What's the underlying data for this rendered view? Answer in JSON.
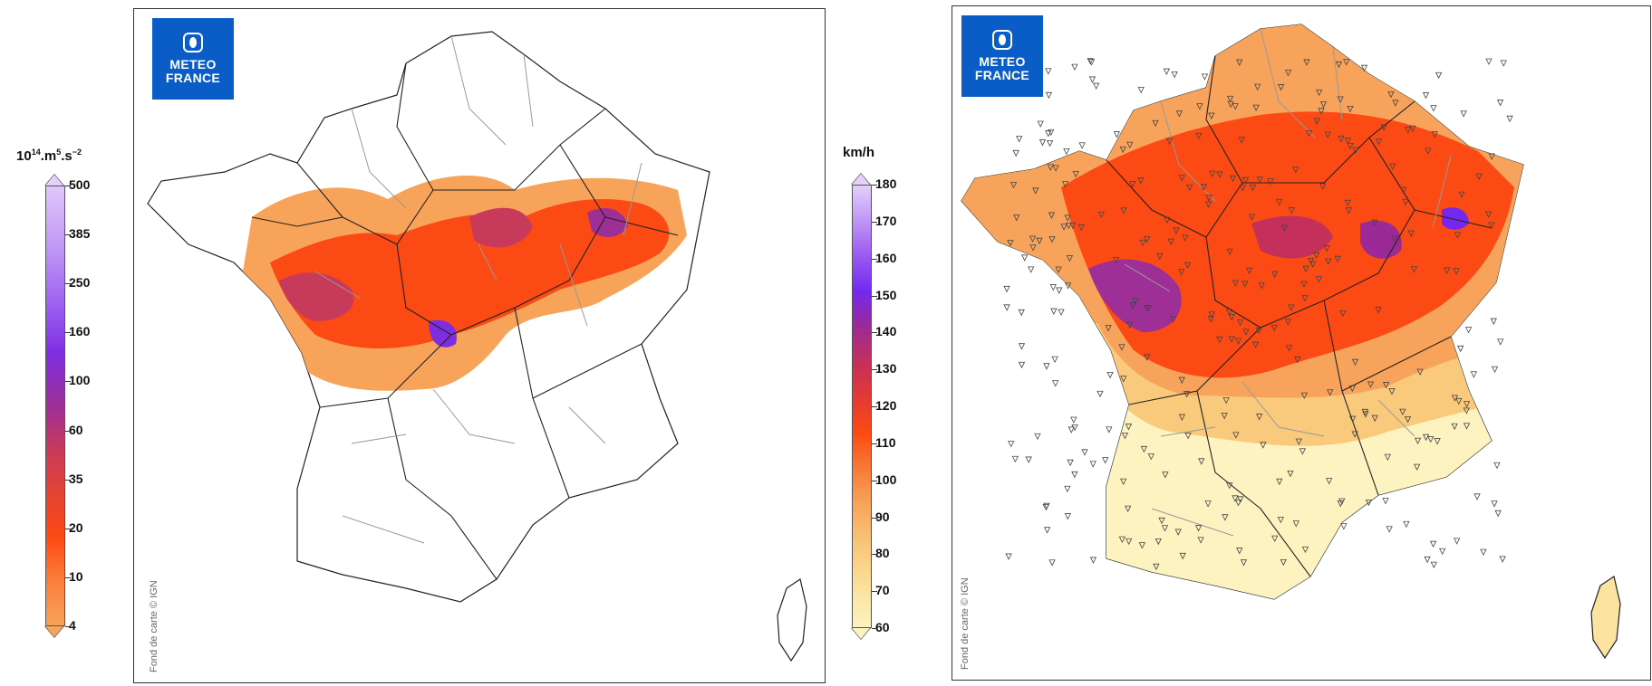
{
  "left_panel": {
    "logo_line1": "METEO",
    "logo_line2": "FRANCE",
    "credit": "Fond de carte © IGN",
    "unit_prefix": "10",
    "unit_exp1": "14",
    "unit_mid": ".m",
    "unit_exp2": "5",
    "unit_mid2": ".s",
    "unit_exp3": "−2",
    "ticks": [
      "500",
      "385",
      "250",
      "160",
      "100",
      "60",
      "35",
      "20",
      "10",
      "4"
    ]
  },
  "right_panel": {
    "logo_line1": "METEO",
    "logo_line2": "FRANCE",
    "credit": "Fond de carte © IGN",
    "unit": "km/h",
    "ticks": [
      "180",
      "170",
      "160",
      "150",
      "140",
      "130",
      "120",
      "110",
      "100",
      "90",
      "80",
      "70",
      "60"
    ]
  },
  "colors": {
    "meteo_blue": "#0a5cc6",
    "low_orange": "#f8a35a",
    "orange_red": "#fc4a14",
    "magenta": "#9e2f97",
    "violet": "#7d2fe0",
    "pale_yellow": "#fdf3c1"
  },
  "icons": [
    "meteo-france-logo",
    "wind-station-marker"
  ]
}
